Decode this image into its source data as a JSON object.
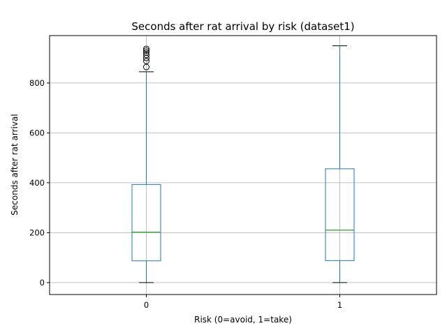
{
  "chart_data": {
    "type": "box",
    "title": "Seconds after rat arrival by risk (dataset1)",
    "xlabel": "Risk (0=avoid, 1=take)",
    "ylabel": "Seconds after rat arrival",
    "ylim": [
      -48,
      990
    ],
    "yticks": [
      0,
      200,
      400,
      600,
      800
    ],
    "grid": true,
    "categories": [
      "0",
      "1"
    ],
    "boxes": [
      {
        "category": "0",
        "whisker_low": 0,
        "q1": 87,
        "median": 202,
        "q3": 393,
        "whisker_high": 845,
        "outliers": [
          864,
          888,
          900,
          912,
          922,
          930,
          937
        ]
      },
      {
        "category": "1",
        "whisker_low": 0,
        "q1": 88,
        "median": 210,
        "q3": 456,
        "whisker_high": 949,
        "outliers": []
      }
    ],
    "colors": {
      "box": "#1f77b4",
      "median": "#2ca02c",
      "cap": "#000000",
      "grid": "#b0b0b0",
      "axis": "#000000"
    }
  }
}
